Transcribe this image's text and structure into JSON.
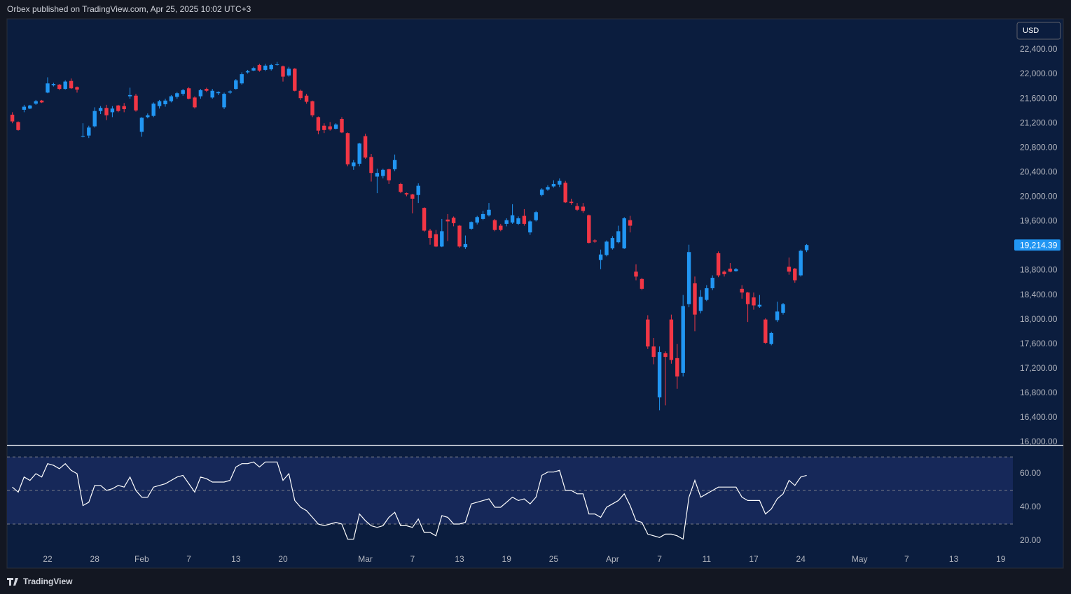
{
  "chart_data": {
    "type": "candlestick",
    "title": "Orbex published on TradingView.com, Apr 25, 2025 10:02 UTC+3",
    "currency": "USD",
    "brand": "TradingView",
    "up_color": "#2196f3",
    "down_color": "#f23645",
    "categories": [
      null,
      null,
      null,
      null,
      null,
      null,
      "22",
      null,
      null,
      null,
      null,
      null,
      null,
      null,
      "28",
      null,
      null,
      null,
      null,
      null,
      null,
      null,
      "Feb",
      null,
      null,
      null,
      null,
      null,
      null,
      null,
      "7",
      null,
      null,
      null,
      null,
      null,
      null,
      null,
      "13",
      null,
      null,
      null,
      null,
      null,
      null,
      null,
      "20",
      null,
      null,
      null,
      null,
      null,
      null,
      null,
      null,
      null,
      null,
      null,
      null,
      null,
      "Mar",
      null,
      null,
      null,
      null,
      null,
      null,
      null,
      "7",
      null,
      null,
      null,
      null,
      null,
      null,
      null,
      "13",
      null,
      null,
      null,
      null,
      null,
      null,
      null,
      "19",
      null,
      null,
      null,
      null,
      null,
      null,
      null,
      "25",
      null,
      null,
      null,
      null,
      null,
      null,
      null,
      null,
      null,
      "Apr",
      null,
      null,
      null,
      null,
      null,
      null,
      null,
      "7",
      null,
      null,
      null,
      null,
      null,
      null,
      null,
      "11",
      null,
      null,
      null,
      null,
      null,
      null,
      null,
      "17",
      null,
      null,
      null,
      null,
      null,
      null,
      null,
      "24",
      null,
      null,
      null,
      null,
      null,
      null,
      null,
      null,
      null,
      "May",
      null,
      null,
      null,
      null,
      null,
      null,
      null,
      "7",
      null,
      null,
      null,
      null,
      null,
      null,
      null,
      "13",
      null,
      null,
      null,
      null,
      null,
      null,
      null,
      "19",
      null
    ],
    "candles": [
      [
        21340,
        21380,
        21200,
        21230
      ],
      [
        21220,
        21230,
        21080,
        21090
      ],
      [
        21420,
        21500,
        21380,
        21470
      ],
      [
        21440,
        21500,
        21430,
        21490
      ],
      [
        21520,
        21580,
        21500,
        21560
      ],
      [
        21570,
        21580,
        21530,
        21540
      ],
      [
        21700,
        21950,
        21690,
        21850
      ],
      [
        21820,
        21860,
        21800,
        21840
      ],
      [
        21830,
        21840,
        21740,
        21760
      ],
      [
        21760,
        21900,
        21750,
        21880
      ],
      [
        21890,
        21930,
        21760,
        21770
      ],
      [
        21790,
        21800,
        21700,
        21750
      ],
      [
        20990,
        21200,
        20970,
        20990
      ],
      [
        21000,
        21160,
        20960,
        21130
      ],
      [
        21150,
        21460,
        21130,
        21400
      ],
      [
        21400,
        21480,
        21350,
        21450
      ],
      [
        21450,
        21500,
        21250,
        21330
      ],
      [
        21380,
        21480,
        21300,
        21440
      ],
      [
        21490,
        21500,
        21380,
        21400
      ],
      [
        21480,
        21530,
        21380,
        21430
      ],
      [
        21640,
        21780,
        21600,
        21660
      ],
      [
        21650,
        21680,
        21390,
        21410
      ],
      [
        21060,
        21300,
        20980,
        21290
      ],
      [
        21300,
        21360,
        21280,
        21330
      ],
      [
        21320,
        21540,
        21300,
        21520
      ],
      [
        21480,
        21580,
        21440,
        21560
      ],
      [
        21510,
        21600,
        21470,
        21570
      ],
      [
        21560,
        21660,
        21540,
        21640
      ],
      [
        21630,
        21710,
        21600,
        21690
      ],
      [
        21680,
        21760,
        21650,
        21740
      ],
      [
        21770,
        21790,
        21590,
        21600
      ],
      [
        21620,
        21640,
        21440,
        21460
      ],
      [
        21640,
        21760,
        21600,
        21740
      ],
      [
        21760,
        21780,
        21710,
        21730
      ],
      [
        21620,
        21760,
        21600,
        21730
      ],
      [
        21690,
        21720,
        21660,
        21710
      ],
      [
        21460,
        21700,
        21430,
        21680
      ],
      [
        21700,
        21740,
        21680,
        21720
      ],
      [
        21760,
        21920,
        21750,
        21900
      ],
      [
        21850,
        22030,
        21830,
        22000
      ],
      [
        22030,
        22070,
        22010,
        22050
      ],
      [
        22060,
        22120,
        22050,
        22100
      ],
      [
        22150,
        22170,
        22040,
        22060
      ],
      [
        22070,
        22170,
        22050,
        22140
      ],
      [
        22080,
        22170,
        22060,
        22150
      ],
      [
        22150,
        22200,
        22140,
        22160
      ],
      [
        22130,
        22140,
        21880,
        21960
      ],
      [
        21980,
        22120,
        21960,
        22090
      ],
      [
        22090,
        22100,
        21720,
        21730
      ],
      [
        21730,
        21750,
        21580,
        21610
      ],
      [
        21650,
        21680,
        21520,
        21550
      ],
      [
        21560,
        21570,
        21300,
        21330
      ],
      [
        21300,
        21310,
        21020,
        21080
      ],
      [
        21160,
        21200,
        21040,
        21090
      ],
      [
        21150,
        21220,
        21080,
        21100
      ],
      [
        21110,
        21200,
        21100,
        21180
      ],
      [
        21270,
        21300,
        21040,
        21050
      ],
      [
        21040,
        21050,
        20500,
        20530
      ],
      [
        20500,
        20600,
        20440,
        20560
      ],
      [
        20540,
        20880,
        20500,
        20870
      ],
      [
        20990,
        21030,
        20620,
        20640
      ],
      [
        20650,
        20700,
        20250,
        20390
      ],
      [
        20330,
        20460,
        20060,
        20390
      ],
      [
        20340,
        20460,
        20300,
        20440
      ],
      [
        20450,
        20460,
        20210,
        20270
      ],
      [
        20450,
        20690,
        20420,
        20600
      ],
      [
        20210,
        20230,
        20060,
        20080
      ],
      [
        20060,
        20070,
        20010,
        20040
      ],
      [
        20040,
        20050,
        19730,
        19970
      ],
      [
        20030,
        20220,
        19900,
        20180
      ],
      [
        19820,
        19830,
        19430,
        19450
      ],
      [
        19450,
        19480,
        19220,
        19330
      ],
      [
        19390,
        19460,
        19180,
        19190
      ],
      [
        19190,
        19640,
        19180,
        19440
      ],
      [
        19630,
        19720,
        19280,
        19600
      ],
      [
        19660,
        19680,
        19520,
        19570
      ],
      [
        19530,
        19540,
        19170,
        19190
      ],
      [
        19180,
        19370,
        19150,
        19230
      ],
      [
        19480,
        19600,
        19460,
        19590
      ],
      [
        19580,
        19690,
        19550,
        19670
      ],
      [
        19640,
        19770,
        19620,
        19720
      ],
      [
        19700,
        19900,
        19680,
        19790
      ],
      [
        19620,
        19640,
        19440,
        19460
      ],
      [
        19530,
        19560,
        19440,
        19460
      ],
      [
        19560,
        19650,
        19520,
        19620
      ],
      [
        19580,
        19880,
        19560,
        19700
      ],
      [
        19560,
        19680,
        19540,
        19650
      ],
      [
        19690,
        19800,
        19530,
        19560
      ],
      [
        19420,
        19620,
        19380,
        19600
      ],
      [
        19620,
        19770,
        19600,
        19750
      ],
      [
        20030,
        20140,
        20010,
        20120
      ],
      [
        20120,
        20190,
        20100,
        20160
      ],
      [
        20170,
        20270,
        20150,
        20210
      ],
      [
        20200,
        20300,
        20160,
        20260
      ],
      [
        20230,
        20260,
        19900,
        19910
      ],
      [
        19920,
        19970,
        19870,
        19900
      ],
      [
        19850,
        19900,
        19770,
        19790
      ],
      [
        19840,
        19900,
        19740,
        19770
      ],
      [
        19700,
        19710,
        19240,
        19250
      ],
      [
        19290,
        19310,
        19250,
        19270
      ],
      [
        18970,
        19140,
        18820,
        19060
      ],
      [
        19050,
        19290,
        19030,
        19270
      ],
      [
        19160,
        19360,
        19140,
        19330
      ],
      [
        19260,
        19530,
        19240,
        19440
      ],
      [
        19160,
        19670,
        19150,
        19650
      ],
      [
        19620,
        19690,
        19420,
        19530
      ],
      [
        18780,
        18900,
        18640,
        18700
      ],
      [
        18660,
        18680,
        18480,
        18500
      ],
      [
        18000,
        18070,
        17520,
        17560
      ],
      [
        17560,
        17700,
        17270,
        17390
      ],
      [
        16730,
        17560,
        16520,
        17470
      ],
      [
        17450,
        17480,
        16600,
        17390
      ],
      [
        18000,
        18080,
        17280,
        17340
      ],
      [
        17370,
        17600,
        16870,
        17070
      ],
      [
        17130,
        18400,
        17070,
        18220
      ],
      [
        18250,
        19220,
        18200,
        19100
      ],
      [
        18590,
        18700,
        17810,
        18080
      ],
      [
        18140,
        18480,
        18100,
        18370
      ],
      [
        18320,
        18560,
        18300,
        18510
      ],
      [
        18510,
        18720,
        18480,
        18680
      ],
      [
        19080,
        19110,
        18690,
        18720
      ],
      [
        18780,
        18800,
        18700,
        18740
      ],
      [
        18830,
        18920,
        18770,
        18780
      ],
      [
        18790,
        18840,
        18780,
        18820
      ],
      [
        18500,
        18560,
        18340,
        18440
      ],
      [
        18440,
        18450,
        17960,
        18250
      ],
      [
        18360,
        18440,
        18160,
        18230
      ],
      [
        18210,
        18400,
        18190,
        18240
      ],
      [
        18000,
        18020,
        17600,
        17620
      ],
      [
        17600,
        17800,
        17580,
        17780
      ],
      [
        17990,
        18290,
        17960,
        18130
      ],
      [
        18110,
        18270,
        18080,
        18250
      ],
      [
        18860,
        19010,
        18730,
        18780
      ],
      [
        18830,
        18840,
        18600,
        18640
      ],
      [
        18720,
        19140,
        18700,
        19120
      ],
      [
        19130,
        19230,
        19100,
        19214.39
      ],
      null,
      null,
      null,
      null,
      null,
      null,
      null,
      null,
      null,
      null,
      null,
      null,
      null,
      null,
      null,
      null,
      null,
      null,
      null,
      null,
      null,
      null,
      null,
      null,
      null,
      null,
      null,
      null,
      null,
      null,
      null,
      null,
      null,
      null
    ],
    "price_label": "19,214.39",
    "ylim": [
      15954,
      22902
    ],
    "yticks": [
      {
        "value": 16000,
        "label": "16,000.00"
      },
      {
        "value": 16400,
        "label": "16,400.00"
      },
      {
        "value": 16800,
        "label": "16,800.00"
      },
      {
        "value": 17200,
        "label": "17,200.00"
      },
      {
        "value": 17600,
        "label": "17,600.00"
      },
      {
        "value": 18000,
        "label": "18,000.00"
      },
      {
        "value": 18400,
        "label": "18,400.00"
      },
      {
        "value": 18800,
        "label": "18,800.00"
      },
      {
        "value": 19200,
        "label": "19,200.00"
      },
      {
        "value": 19600,
        "label": "19,600.00"
      },
      {
        "value": 20000,
        "label": "20,000.00"
      },
      {
        "value": 20400,
        "label": "20,400.00"
      },
      {
        "value": 20800,
        "label": "20,800.00"
      },
      {
        "value": 21200,
        "label": "21,200.00"
      },
      {
        "value": 21600,
        "label": "21,600.00"
      },
      {
        "value": 22000,
        "label": "22,000.00"
      },
      {
        "value": 22400,
        "label": "22,400.00"
      }
    ],
    "indicator": {
      "type": "line",
      "color": "#ffffff",
      "ylim": [
        12.9,
        76.7
      ],
      "yticks": [
        {
          "value": 20,
          "label": "20.00"
        },
        {
          "value": 40,
          "label": "40.00"
        },
        {
          "value": 60,
          "label": "60.00"
        }
      ],
      "levels": [
        30,
        50,
        70
      ],
      "values": [
        52,
        49,
        58,
        56,
        60,
        58,
        66,
        65,
        63,
        66,
        62,
        60,
        41,
        43,
        53,
        53,
        50,
        51,
        53,
        52,
        58,
        50,
        46,
        46,
        52,
        53,
        54,
        56,
        58,
        59,
        54,
        49,
        58,
        57,
        55,
        55,
        55,
        56,
        64,
        66,
        66,
        67,
        64,
        67,
        67,
        67,
        56,
        60,
        44,
        40,
        38,
        34,
        30,
        29,
        30,
        31,
        30,
        21,
        21,
        36,
        32,
        29,
        28,
        29,
        34,
        37,
        29,
        29,
        28,
        33,
        25,
        25,
        23,
        35,
        34,
        30,
        30,
        31,
        42,
        43,
        44,
        45,
        40,
        40,
        43,
        46,
        44,
        45,
        42,
        46,
        59,
        61,
        61,
        62,
        50,
        50,
        48,
        48,
        36,
        36,
        34,
        40,
        42,
        44,
        48,
        41,
        32,
        31,
        24,
        23,
        22,
        24,
        24,
        23,
        21,
        46,
        56,
        46,
        48,
        50,
        52,
        52,
        52,
        52,
        46,
        44,
        44,
        44,
        36,
        39,
        45,
        48,
        56,
        53,
        58,
        59,
        null,
        null,
        null,
        null,
        null,
        null,
        null,
        null,
        null,
        null,
        null,
        null,
        null,
        null,
        null,
        null,
        null,
        null,
        null,
        null,
        null,
        null,
        null,
        null,
        null,
        null,
        null,
        null,
        null,
        null,
        null,
        null,
        null,
        null
      ]
    }
  }
}
